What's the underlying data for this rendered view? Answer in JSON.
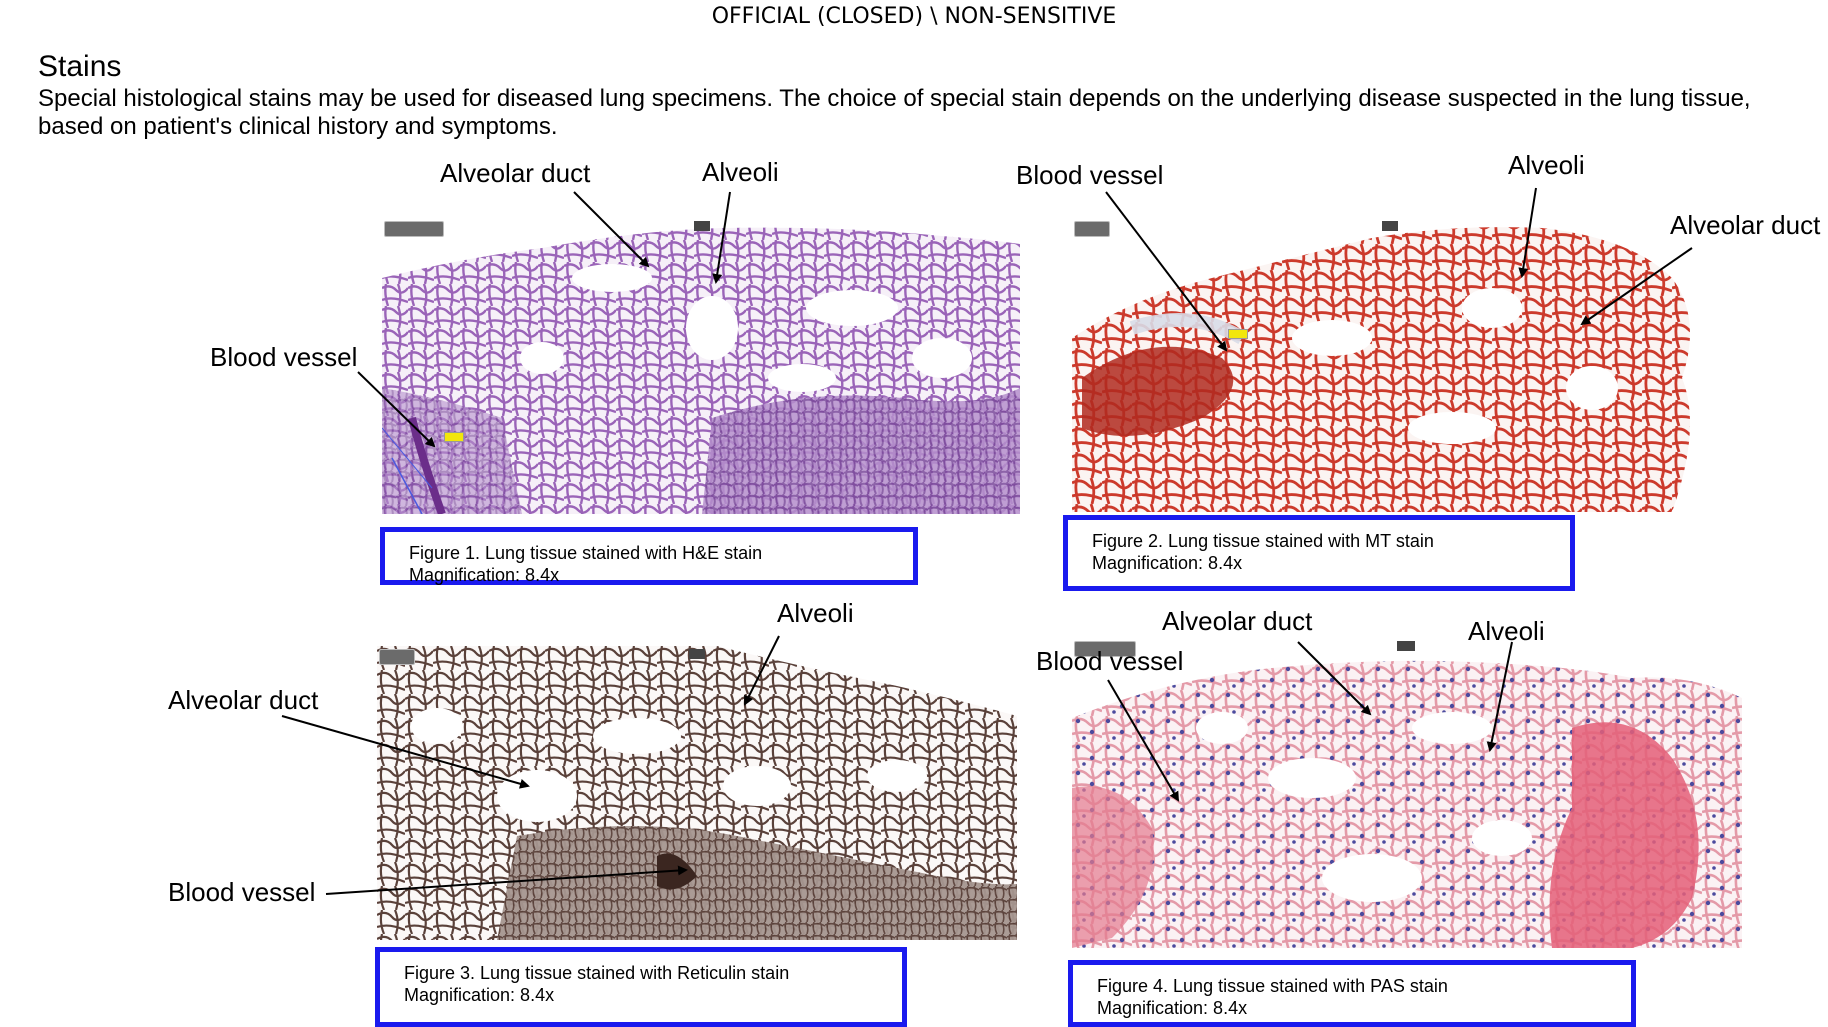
{
  "header": {
    "classification": "OFFICIAL (CLOSED) \\ NON-SENSITIVE"
  },
  "section": {
    "title": "Stains",
    "intro": "Special histological stains may be used for diseased lung specimens. The choice of special stain depends on the underlying disease suspected in the lung tissue, based on patient's clinical history and symptoms."
  },
  "figures": [
    {
      "stain": "H&E",
      "labels": {
        "duct": "Alveolar duct",
        "alveoli": "Alveoli",
        "vessel": "Blood vessel"
      },
      "caption_line1": "Figure 1. Lung tissue stained with H&E stain",
      "caption_line2": "Magnification: 8.4x",
      "colors": {
        "tissue": "#9a64b8",
        "background": "#f4eef7"
      }
    },
    {
      "stain": "MT",
      "labels": {
        "duct": "Alveolar duct",
        "alveoli": "Alveoli",
        "vessel": "Blood vessel"
      },
      "caption_line1": "Figure 2. Lung tissue stained with MT stain",
      "caption_line2": "Magnification: 8.4x",
      "colors": {
        "tissue": "#cc3a2c",
        "background": "#fbf1ef"
      }
    },
    {
      "stain": "Reticulin",
      "labels": {
        "duct": "Alveolar duct",
        "alveoli": "Alveoli",
        "vessel": "Blood vessel"
      },
      "caption_line1": "Figure 3. Lung tissue stained with Reticulin stain",
      "caption_line2": "Magnification: 8.4x",
      "colors": {
        "tissue": "#6b5148",
        "background": "#f5efec"
      }
    },
    {
      "stain": "PAS",
      "labels": {
        "duct": "Alveolar duct",
        "alveoli": "Alveoli",
        "vessel": "Blood vessel"
      },
      "caption_line1": "Figure 4. Lung tissue stained with PAS stain",
      "caption_line2": "Magnification: 8.4x",
      "colors": {
        "tissue": "#e49aa8",
        "nuclei": "#4b4a9e",
        "background": "#fbf2f4"
      }
    }
  ],
  "caption_border_color": "#1a1aee"
}
